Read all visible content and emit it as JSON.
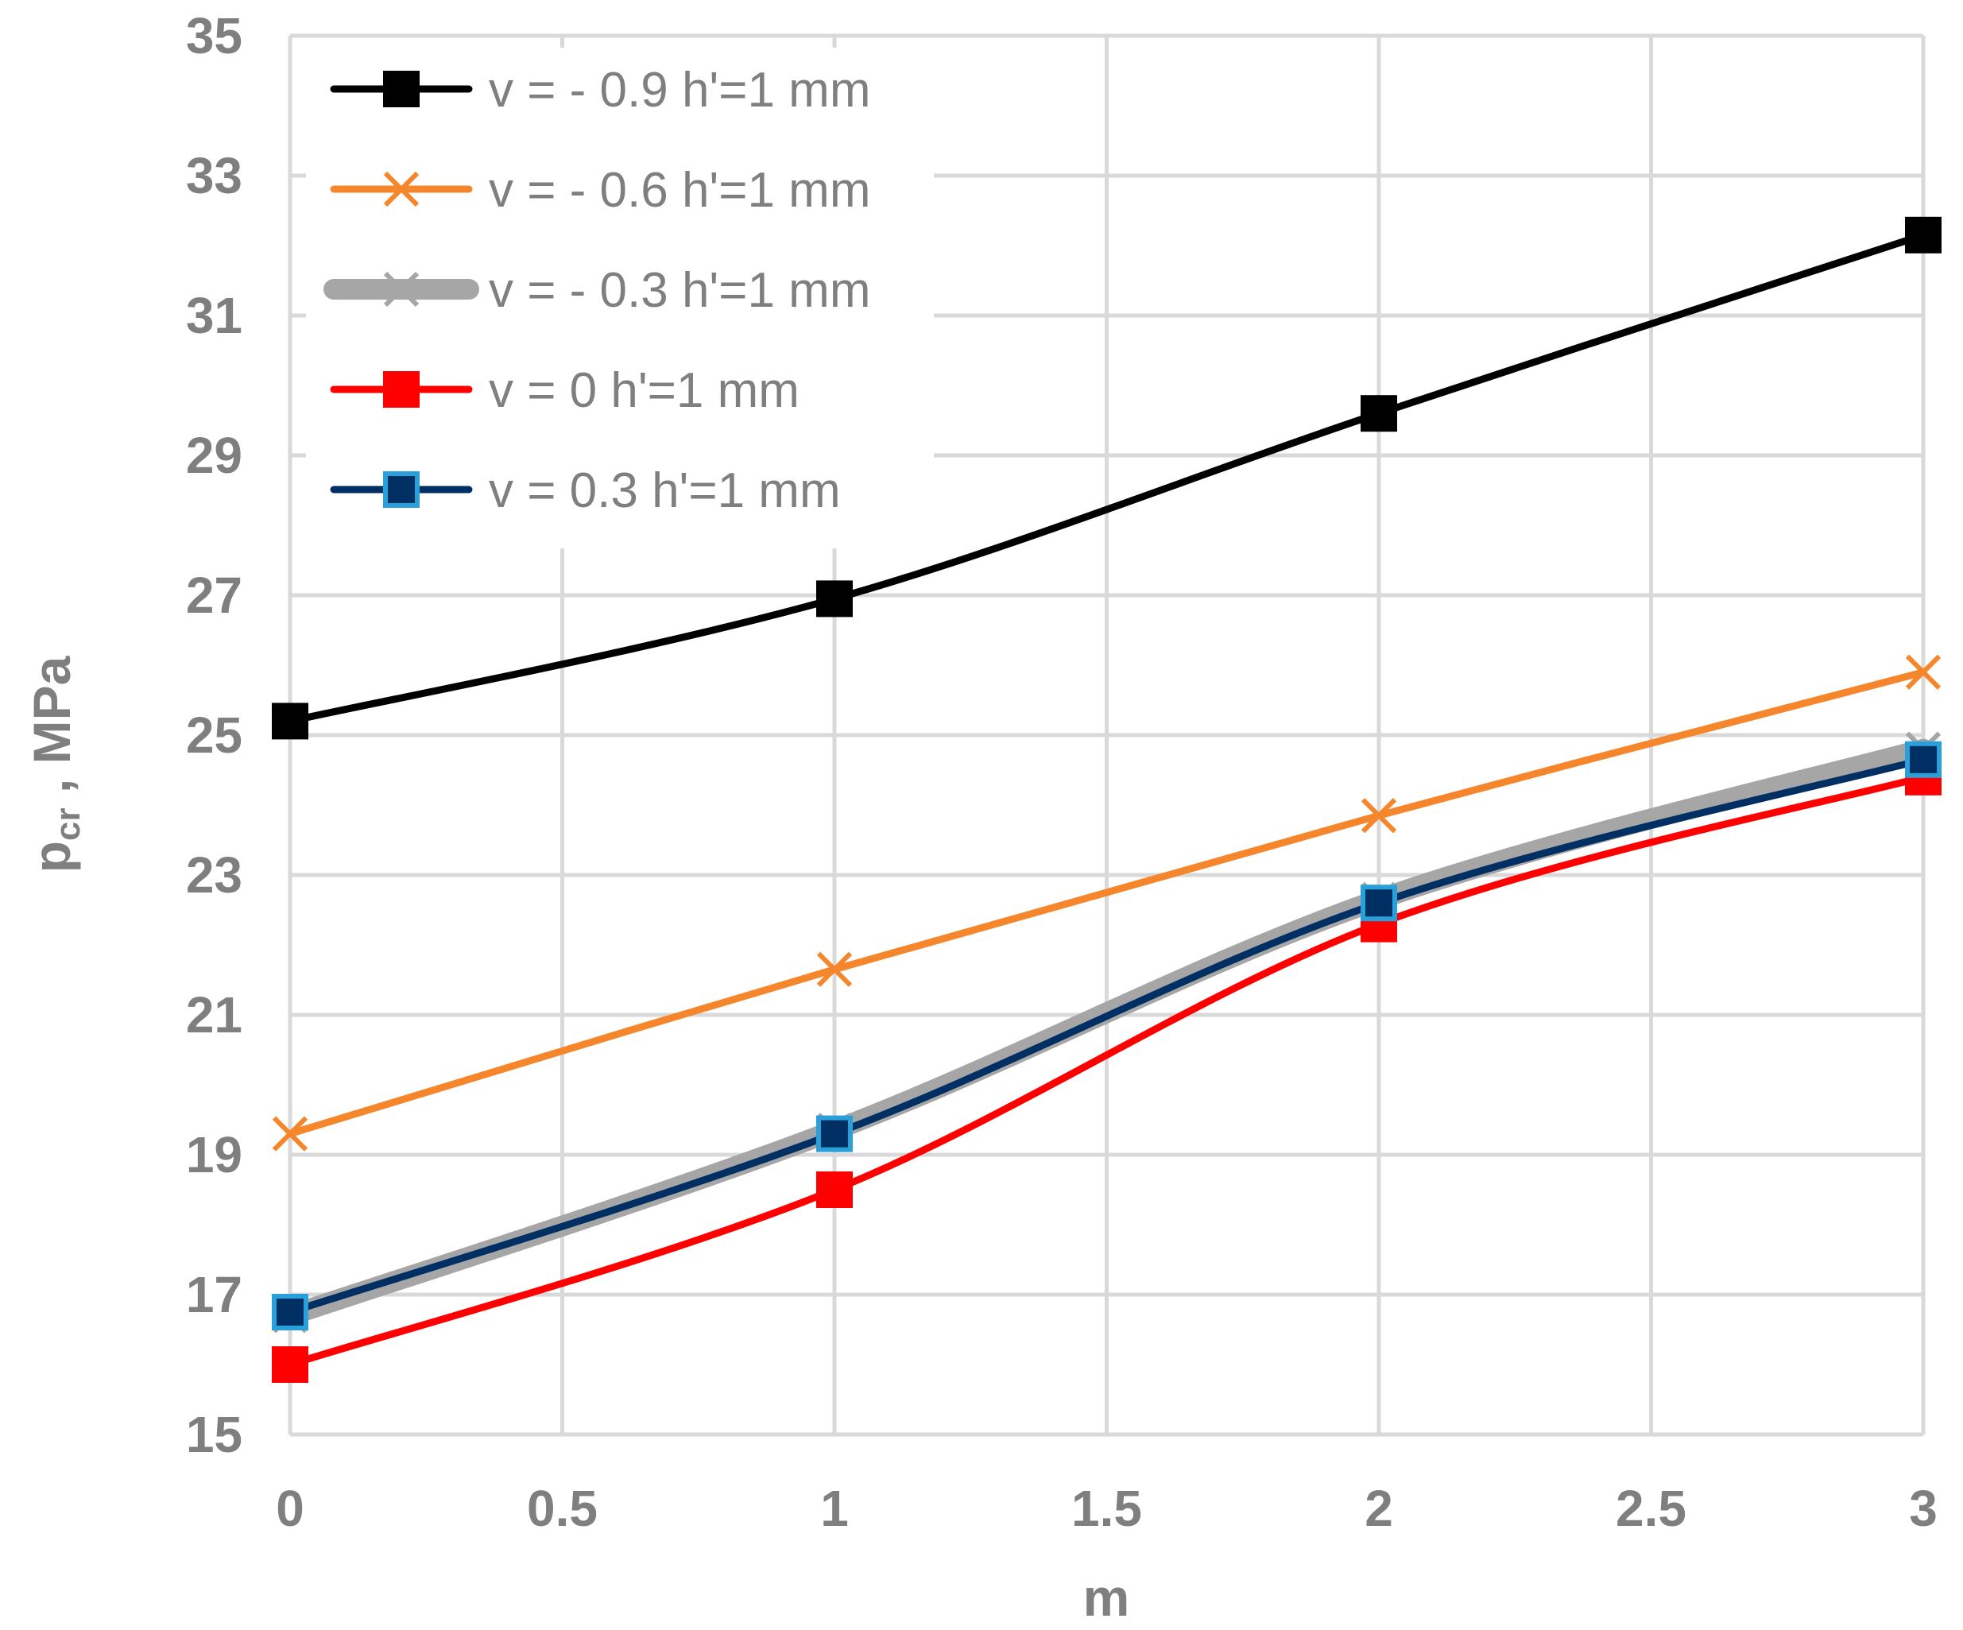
{
  "chart_data": {
    "type": "line",
    "title": "",
    "xlabel": "m",
    "ylabel_main": "p",
    "ylabel_sub": "cr",
    "ylabel_suffix": " , MPa",
    "xlim": [
      0,
      3
    ],
    "ylim": [
      15,
      35
    ],
    "xticks": [
      "0",
      "0.5",
      "1",
      "1.5",
      "2",
      "2.5",
      "3"
    ],
    "yticks": [
      "15",
      "17",
      "19",
      "21",
      "23",
      "25",
      "27",
      "29",
      "31",
      "33",
      "35"
    ],
    "grid": true,
    "legend_position": "top-left",
    "x": [
      0,
      1,
      2,
      3
    ],
    "series": [
      {
        "name": "v = - 0.9 h'=1 mm",
        "values": [
          25.2,
          26.95,
          29.6,
          32.15
        ],
        "color": "#000000",
        "marker": "square",
        "marker_fill": "#000000",
        "marker_stroke": "#000000",
        "line_width": 9
      },
      {
        "name": "v = - 0.6 h'=1 mm",
        "values": [
          19.3,
          21.65,
          23.85,
          25.9
        ],
        "color": "#f5862b",
        "marker": "x",
        "marker_fill": "none",
        "marker_stroke": "#f5862b",
        "line_width": 9
      },
      {
        "name": "v = - 0.3 h'=1 mm",
        "values": [
          16.7,
          19.35,
          22.65,
          24.8
        ],
        "color": "#a6a6a6",
        "marker": "x",
        "marker_fill": "none",
        "marker_stroke": "#a6a6a6",
        "line_width": 26
      },
      {
        "name": "v = 0 h'=1 mm",
        "values": [
          16.0,
          18.5,
          22.3,
          24.4
        ],
        "color": "#ff0000",
        "marker": "square",
        "marker_fill": "#ff0000",
        "marker_stroke": "#ff0000",
        "line_width": 9
      },
      {
        "name": "v = 0.3 h'=1 mm",
        "values": [
          16.75,
          19.3,
          22.6,
          24.65
        ],
        "color": "#002f63",
        "marker": "square",
        "marker_fill": "#002f63",
        "marker_stroke": "#2aa0da",
        "line_width": 9
      }
    ]
  }
}
